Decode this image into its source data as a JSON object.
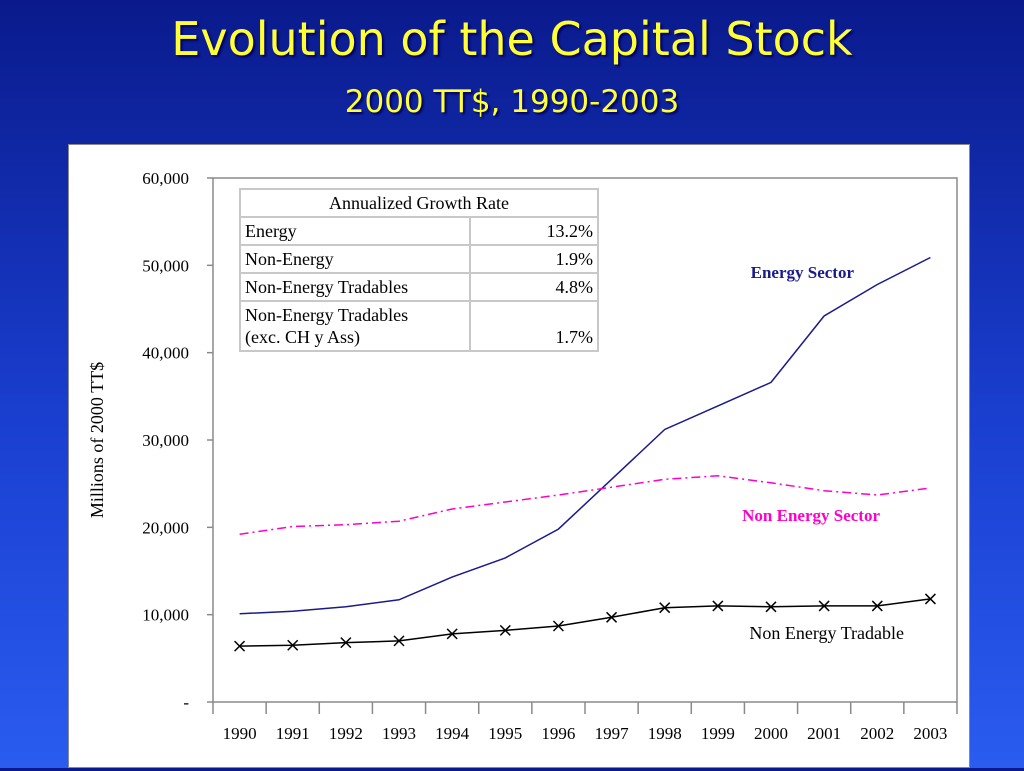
{
  "slide": {
    "title": "Evolution of the Capital Stock",
    "subtitle": "2000 TT$, 1990-2003"
  },
  "colors": {
    "energy": "#1a1a8c",
    "non_energy": "#ff00cc",
    "tradable": "#000000",
    "slide_text": "#ffff33"
  },
  "growth_table": {
    "header": "Annualized Growth Rate",
    "rows": [
      {
        "label": "Energy",
        "value": "13.2%"
      },
      {
        "label": "Non-Energy",
        "value": "1.9%"
      },
      {
        "label": "Non-Energy Tradables",
        "value": "4.8%"
      },
      {
        "label": "Non-Energy Tradables (exc. CH y Ass)",
        "line1": "Non-Energy Tradables",
        "line2": "(exc. CH y Ass)",
        "value": "1.7%"
      }
    ]
  },
  "chart_data": {
    "type": "line",
    "ylabel": "Millions of 2000 TT$",
    "ylim": [
      0,
      60000
    ],
    "yticks": [
      0,
      10000,
      20000,
      30000,
      40000,
      50000,
      60000
    ],
    "ytick_labels": [
      "-",
      "10,000",
      "20,000",
      "30,000",
      "40,000",
      "50,000",
      "60,000"
    ],
    "categories": [
      "1990",
      "1991",
      "1992",
      "1993",
      "1994",
      "1995",
      "1996",
      "1997",
      "1998",
      "1999",
      "2000",
      "2001",
      "2002",
      "2003"
    ],
    "grid": false,
    "series": [
      {
        "name": "Energy Sector",
        "color": "#1a1a8c",
        "style": "solid",
        "values": [
          10100,
          10400,
          10900,
          11700,
          14300,
          16500,
          19800,
          25500,
          31200,
          33900,
          36600,
          44200,
          47800,
          50900
        ]
      },
      {
        "name": "Non Energy Sector",
        "color": "#ff00cc",
        "style": "dashdot",
        "values": [
          19200,
          20100,
          20300,
          20700,
          22100,
          22900,
          23700,
          24600,
          25500,
          25900,
          25100,
          24200,
          23700,
          24500
        ]
      },
      {
        "name": "Non Energy Tradable",
        "color": "#000000",
        "style": "solid",
        "marker": "x",
        "values": [
          6400,
          6500,
          6800,
          7000,
          7800,
          8200,
          8700,
          9700,
          10800,
          11000,
          10900,
          11000,
          11000,
          11800
        ]
      }
    ]
  }
}
